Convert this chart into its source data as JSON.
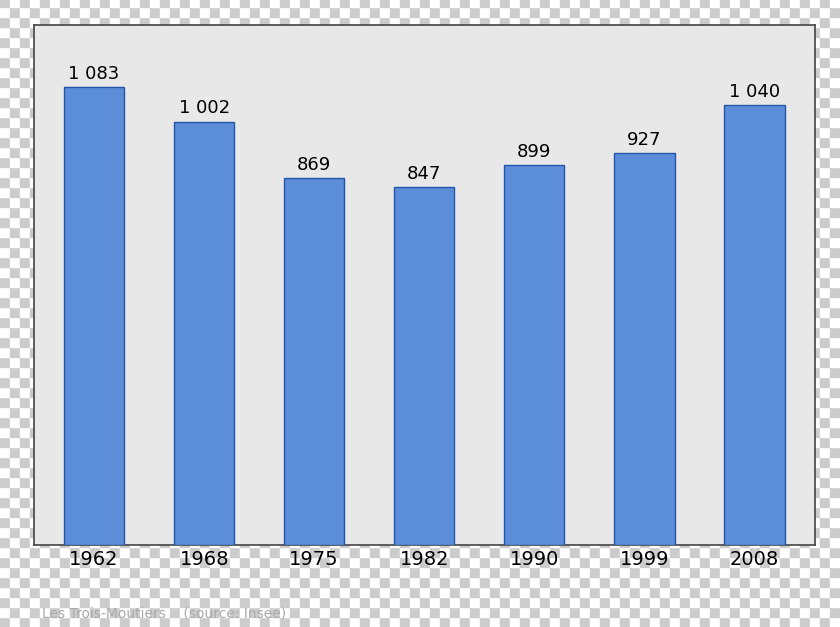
{
  "years": [
    "1962",
    "1968",
    "1975",
    "1982",
    "1990",
    "1999",
    "2008"
  ],
  "values": [
    1083,
    1002,
    869,
    847,
    899,
    927,
    1040
  ],
  "labels": [
    "1 083",
    "1 002",
    "869",
    "847",
    "899",
    "927",
    "1 040"
  ],
  "bar_color": "#5b8dd9",
  "bar_edge_color": "#2255aa",
  "plot_bg_color": "#e8e8e8",
  "outer_bg_color": "#c8c8c8",
  "caption": "Les Trois-Moutiers    (source: Insee)",
  "caption_color": "#aaaaaa",
  "label_fontsize": 13,
  "tick_fontsize": 14,
  "caption_fontsize": 10,
  "ylim": [
    0,
    1230
  ],
  "bar_width": 0.55
}
